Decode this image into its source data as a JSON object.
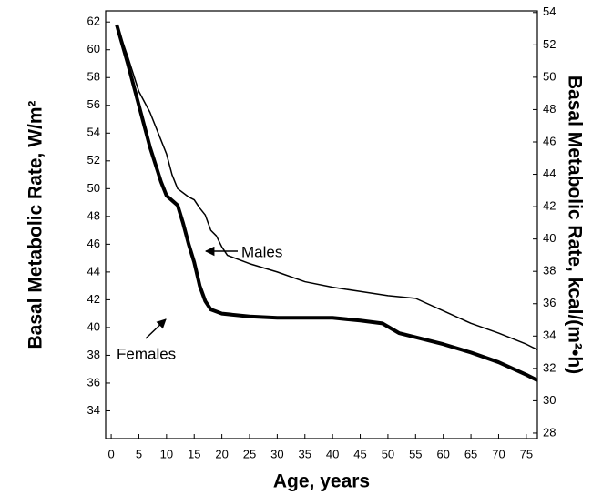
{
  "chart_data": {
    "type": "line",
    "xlabel": "Age, years",
    "ylabel": "Basal Metabolic Rate, W/m²",
    "y2label": "Basal Metabolic Rate, kcal/(m²•h)",
    "xlim": [
      -1,
      77
    ],
    "xticks": [
      0,
      5,
      10,
      15,
      20,
      25,
      30,
      35,
      40,
      45,
      50,
      55,
      60,
      65,
      70,
      75
    ],
    "ylim": [
      32,
      62.8
    ],
    "yticks": [
      34,
      36,
      38,
      40,
      42,
      44,
      46,
      48,
      50,
      52,
      54,
      56,
      58,
      60,
      62
    ],
    "y2lim": [
      27.66,
      54.1
    ],
    "y2ticks": [
      28,
      30,
      32,
      34,
      36,
      38,
      40,
      42,
      44,
      46,
      48,
      50,
      52,
      54
    ],
    "series": [
      {
        "name": "Males",
        "color": "#000000",
        "x": [
          1,
          3,
          5,
          7,
          10,
          11,
          12,
          14,
          15,
          16,
          17,
          18,
          19,
          20,
          21,
          25,
          30,
          35,
          40,
          45,
          50,
          55,
          60,
          65,
          70,
          75,
          77
        ],
        "values": [
          61.8,
          59.5,
          57,
          55.5,
          52.5,
          51,
          50,
          49.4,
          49.2,
          48.6,
          48.1,
          47,
          46.6,
          45.8,
          45.2,
          44.6,
          44,
          43.3,
          42.9,
          42.6,
          42.3,
          42.1,
          41.2,
          40.3,
          39.6,
          38.8,
          38.4
        ]
      },
      {
        "name": "Females",
        "color": "#000000",
        "x": [
          1,
          3,
          5,
          7,
          9,
          10,
          12,
          13,
          14,
          15,
          16,
          17,
          18,
          20,
          25,
          30,
          40,
          45,
          49,
          52,
          60,
          65,
          70,
          75,
          77
        ],
        "values": [
          61.8,
          59,
          56,
          53,
          50.5,
          49.5,
          48.8,
          47.5,
          46,
          44.7,
          43,
          41.9,
          41.3,
          41,
          40.8,
          40.7,
          40.7,
          40.5,
          40.3,
          39.6,
          38.8,
          38.2,
          37.5,
          36.6,
          36.2
        ]
      }
    ]
  }
}
